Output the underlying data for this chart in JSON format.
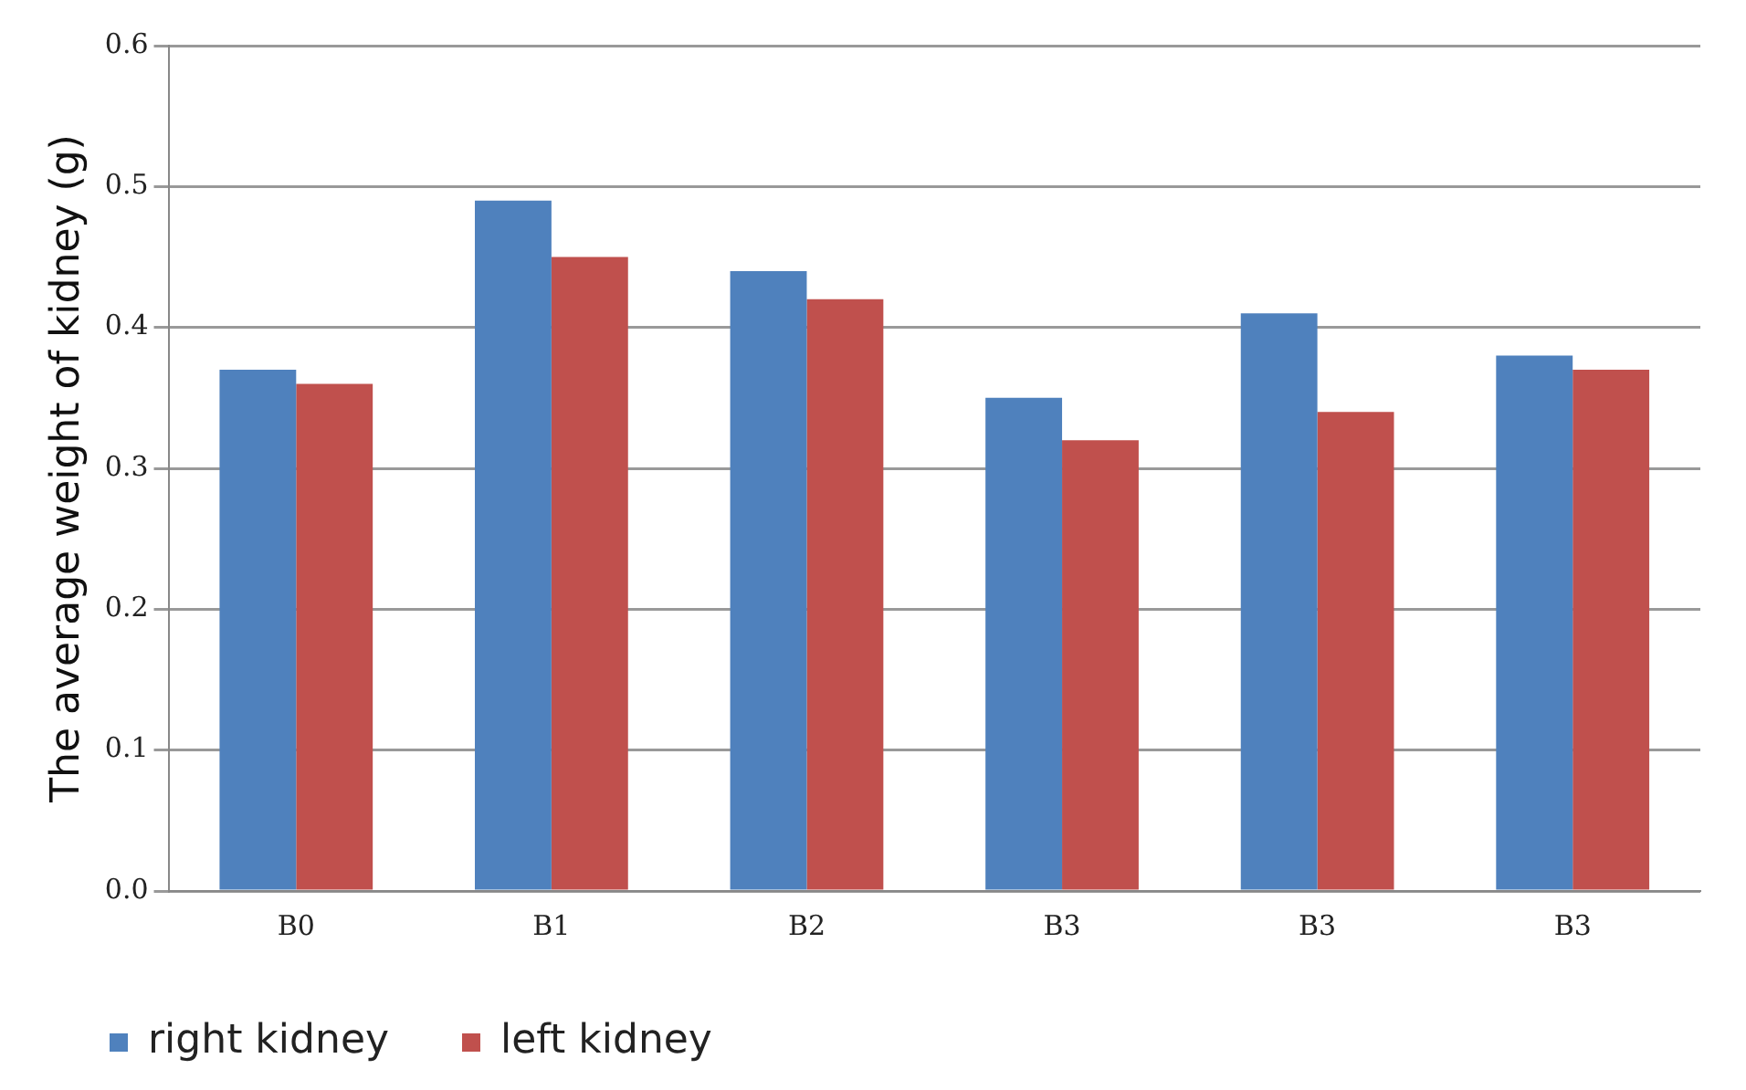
{
  "chart_data": {
    "type": "bar",
    "ylabel": "The average weight of kidney (g)",
    "categories": [
      "B0",
      "B1",
      "B2",
      "B3",
      "B3",
      "B3"
    ],
    "series": [
      {
        "name": "right kidney",
        "color": "#4f81bd",
        "values": [
          0.37,
          0.49,
          0.44,
          0.35,
          0.41,
          0.38
        ]
      },
      {
        "name": "left kidney",
        "color": "#c0504d",
        "values": [
          0.36,
          0.45,
          0.42,
          0.32,
          0.34,
          0.37
        ]
      }
    ],
    "ylim": [
      0,
      0.6
    ],
    "yticks": [
      {
        "value": 0,
        "label": "0.0"
      },
      0.1,
      0.2,
      0.3,
      0.4,
      0.5,
      0.6
    ],
    "grid": "y",
    "legend": "bottom left"
  }
}
